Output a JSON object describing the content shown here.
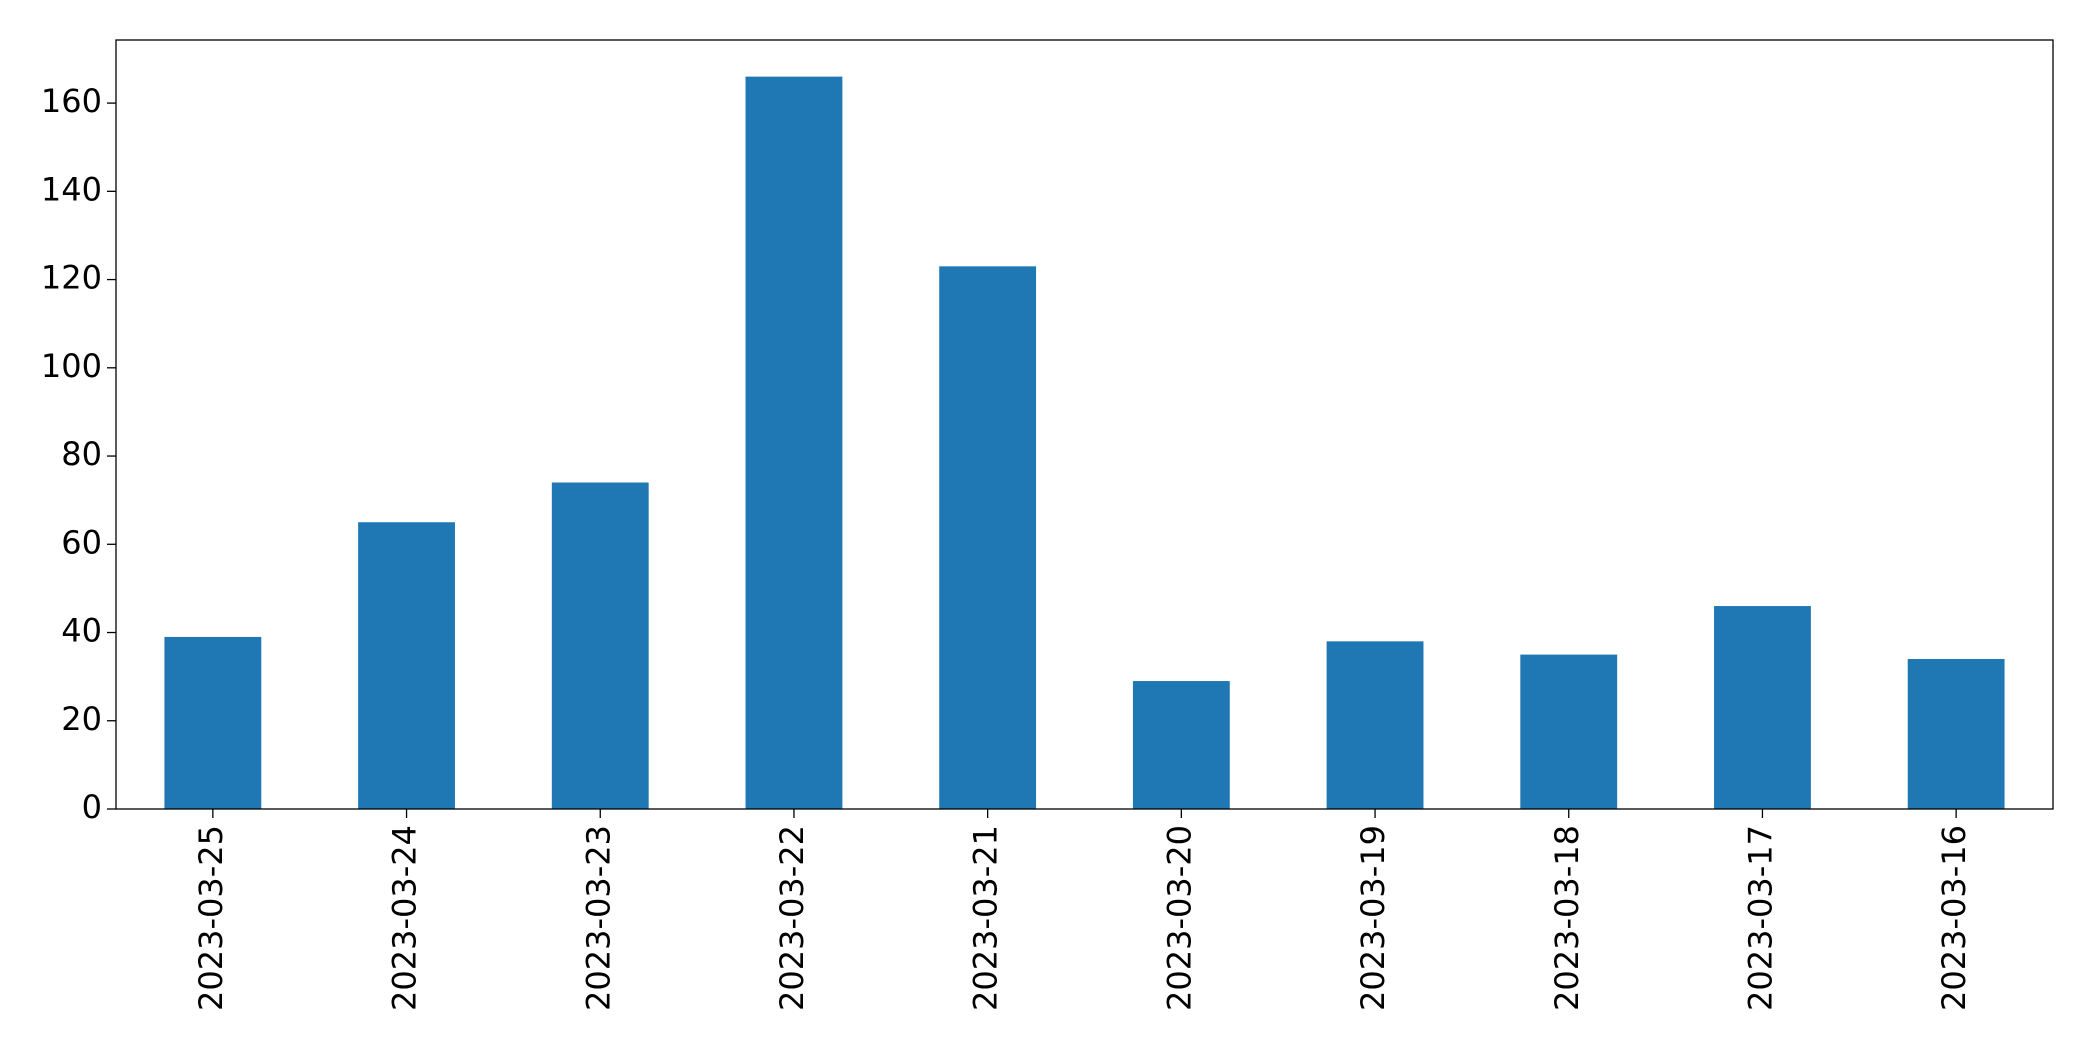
{
  "chart_data": {
    "type": "bar",
    "categories": [
      "2023-03-25",
      "2023-03-24",
      "2023-03-23",
      "2023-03-22",
      "2023-03-21",
      "2023-03-20",
      "2023-03-19",
      "2023-03-18",
      "2023-03-17",
      "2023-03-16"
    ],
    "values": [
      39,
      65,
      74,
      166,
      123,
      29,
      38,
      35,
      46,
      34
    ],
    "color": "#1f77b4",
    "ylim": [
      0,
      174.3
    ],
    "yticks": [
      0,
      20,
      40,
      60,
      80,
      100,
      120,
      140,
      160
    ],
    "grid": false
  }
}
